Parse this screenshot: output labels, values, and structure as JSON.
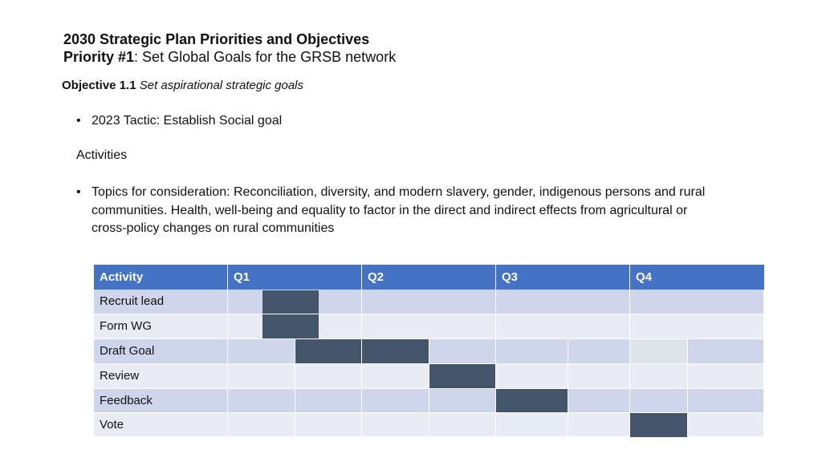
{
  "header": {
    "title": "2030 Strategic Plan Priorities and Objectives",
    "priority_label": "Priority  #1",
    "priority_text": ": Set Global Goals for the GRSB network"
  },
  "objective": {
    "label": "Objective 1.1",
    "text": "Set aspirational strategic goals"
  },
  "tactic": "2023 Tactic: Establish Social goal",
  "activities_heading": "Activities",
  "topics": "Topics for consideration: Reconciliation, diversity, and modern slavery, gender, indigenous persons and rural communities. Health, well-being and equality to factor in the direct and indirect effects from agricultural or cross-policy changes on rural communities",
  "bullet_char": "•",
  "table": {
    "headers": [
      "Activity",
      "Q1",
      "Q2",
      "Q3",
      "Q4"
    ],
    "rows": [
      {
        "activity": "Recruit lead"
      },
      {
        "activity": "Form WG"
      },
      {
        "activity": "Draft Goal"
      },
      {
        "activity": "Review"
      },
      {
        "activity": "Feedback"
      },
      {
        "activity": "Vote"
      }
    ],
    "colors": {
      "header": "#4472c4",
      "bar": "#44546a",
      "row_a": "#cfd5ea",
      "row_b": "#e9ebf5"
    }
  }
}
